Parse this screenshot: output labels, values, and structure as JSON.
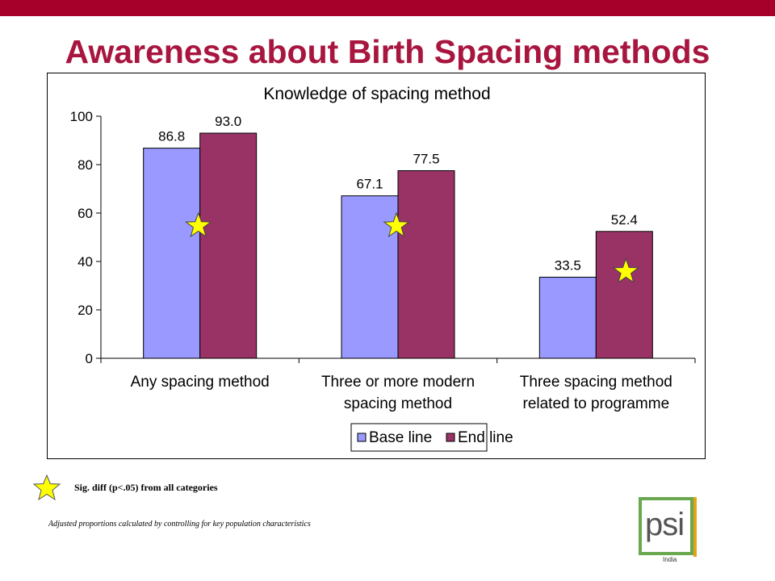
{
  "slide": {
    "title": "Awareness about Birth Spacing methods",
    "sig_note": "Sig. diff (p<.05) from all categories",
    "adjusted_note": "Adjusted proportions calculated by controlling for key population characteristics"
  },
  "logo": {
    "text": "psi",
    "sub": "India"
  },
  "colors": {
    "topbar": "#a6002a",
    "title": "#a8163f",
    "base": "#9999ff",
    "end": "#993366",
    "star": "#ffff00"
  },
  "chart_data": {
    "type": "bar",
    "title": "Knowledge of spacing method",
    "categories": [
      [
        "Any spacing method"
      ],
      [
        "Three or more modern",
        "spacing method"
      ],
      [
        "Three spacing method",
        "related to programme"
      ]
    ],
    "series": [
      {
        "name": "Base line",
        "values": [
          86.8,
          67.1,
          33.5
        ],
        "labels": [
          "86.8",
          "67.1",
          "33.5"
        ],
        "color": "#9999ff"
      },
      {
        "name": "End line",
        "values": [
          93.0,
          77.5,
          52.4
        ],
        "labels": [
          "93.0",
          "77.5",
          "52.4"
        ],
        "color": "#993366"
      }
    ],
    "significant_categories": [
      0,
      1,
      2
    ],
    "ylim": [
      0,
      100
    ],
    "yticks": [
      0,
      20,
      40,
      60,
      80,
      100
    ],
    "legend": "bottom",
    "grid": false
  }
}
